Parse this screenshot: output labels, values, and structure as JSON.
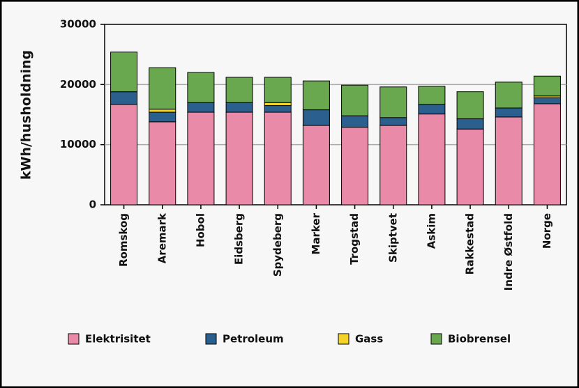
{
  "chart_data": {
    "type": "stacked_bar",
    "ylabel": "kWh/husholdning",
    "categories": [
      "Romskog",
      "Aremark",
      "Hobol",
      "Eidsberg",
      "Spydeberg",
      "Marker",
      "Trogstad",
      "Skiptvet",
      "Askim",
      "Rakkestad",
      "Indre Østfold",
      "Norge"
    ],
    "series": [
      {
        "name": "Elektrisitet",
        "color": "#e98aa8",
        "values": [
          16700,
          13800,
          15400,
          15400,
          15400,
          13200,
          12900,
          13200,
          15100,
          12600,
          14600,
          16800
        ]
      },
      {
        "name": "Petroleum",
        "color": "#2b5f8e",
        "values": [
          2100,
          1600,
          1600,
          1600,
          1100,
          2600,
          1900,
          1300,
          1600,
          1700,
          1500,
          1000
        ]
      },
      {
        "name": "Gass",
        "color": "#f3d22a",
        "values": [
          0,
          500,
          0,
          0,
          500,
          0,
          0,
          0,
          0,
          0,
          0,
          300
        ]
      },
      {
        "name": "Biobrensel",
        "color": "#6aa84f",
        "values": [
          6600,
          6900,
          5000,
          4200,
          4200,
          4800,
          5100,
          5100,
          3000,
          4500,
          4300,
          3300
        ]
      }
    ],
    "ylim": [
      0,
      30000
    ],
    "yticks": [
      0,
      10000,
      20000,
      30000
    ],
    "grid": true
  }
}
